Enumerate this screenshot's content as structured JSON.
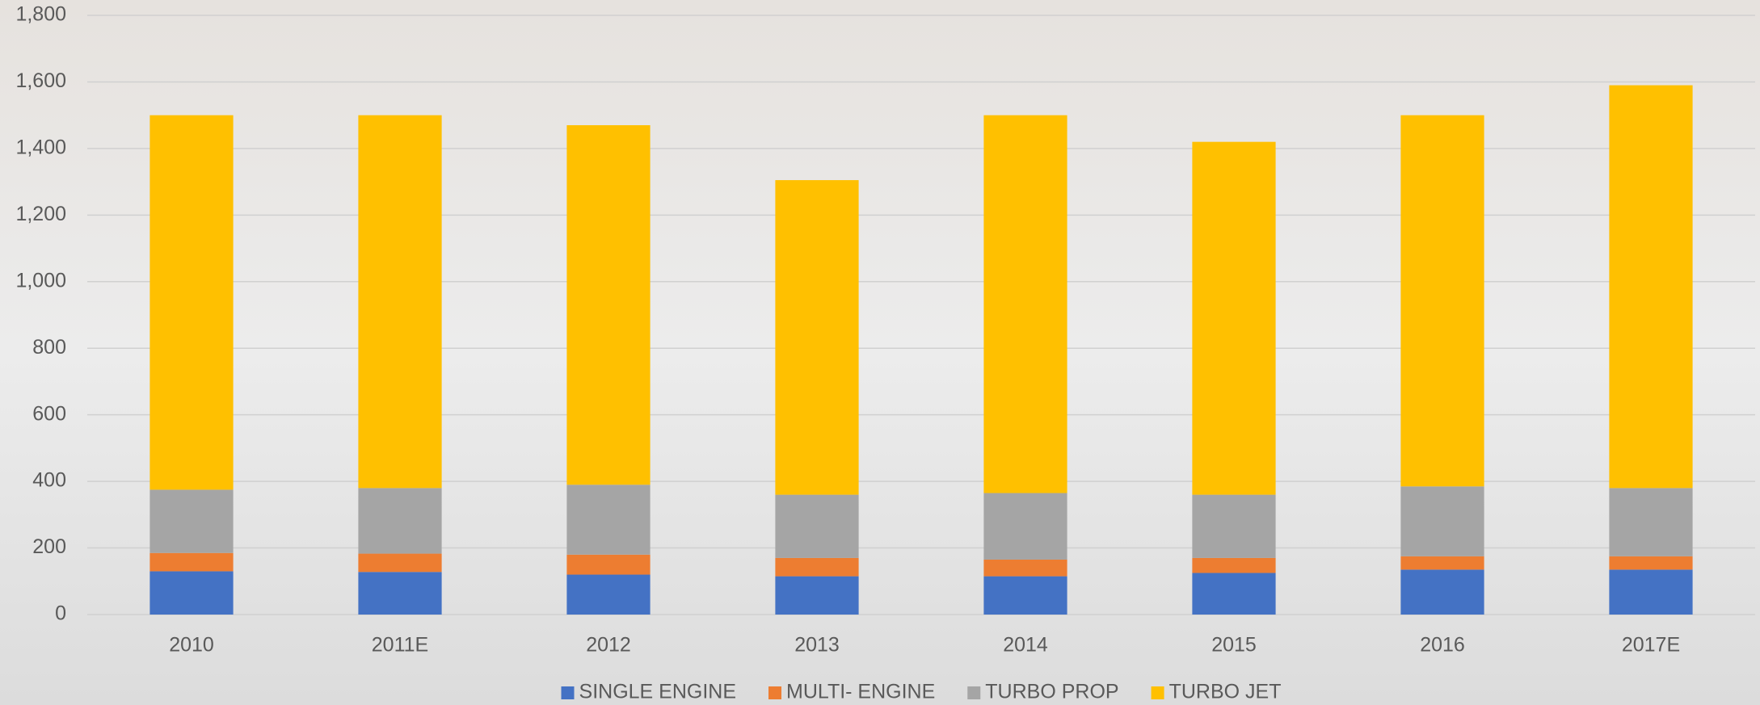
{
  "chart_data": {
    "type": "stacked_bar",
    "categories": [
      "2010",
      "2011E",
      "2012",
      "2013",
      "2014",
      "2015",
      "2016",
      "2017E"
    ],
    "series": [
      {
        "name": "SINGLE ENGINE",
        "color": "#4472c4",
        "values": [
          130,
          128,
          120,
          115,
          115,
          125,
          135,
          135
        ]
      },
      {
        "name": "MULTI- ENGINE",
        "color": "#ed7d31",
        "values": [
          55,
          55,
          60,
          55,
          50,
          45,
          40,
          40
        ]
      },
      {
        "name": "TURBO PROP",
        "color": "#a5a5a5",
        "values": [
          190,
          197,
          210,
          190,
          200,
          190,
          210,
          205
        ]
      },
      {
        "name": "TURBO JET",
        "color": "#ffc000",
        "values": [
          1125,
          1120,
          1080,
          945,
          1135,
          1060,
          1115,
          1210
        ]
      }
    ],
    "ylim": [
      0,
      1800
    ],
    "yticks": [
      0,
      200,
      400,
      600,
      800,
      {
        "value": 1000,
        "label": "1,000"
      },
      {
        "value": 1200,
        "label": "1,200"
      },
      {
        "value": 1400,
        "label": "1,400"
      },
      {
        "value": 1600,
        "label": "1,600"
      },
      {
        "value": 1800,
        "label": "1,800"
      }
    ],
    "grid": true,
    "legend": "bottom"
  }
}
